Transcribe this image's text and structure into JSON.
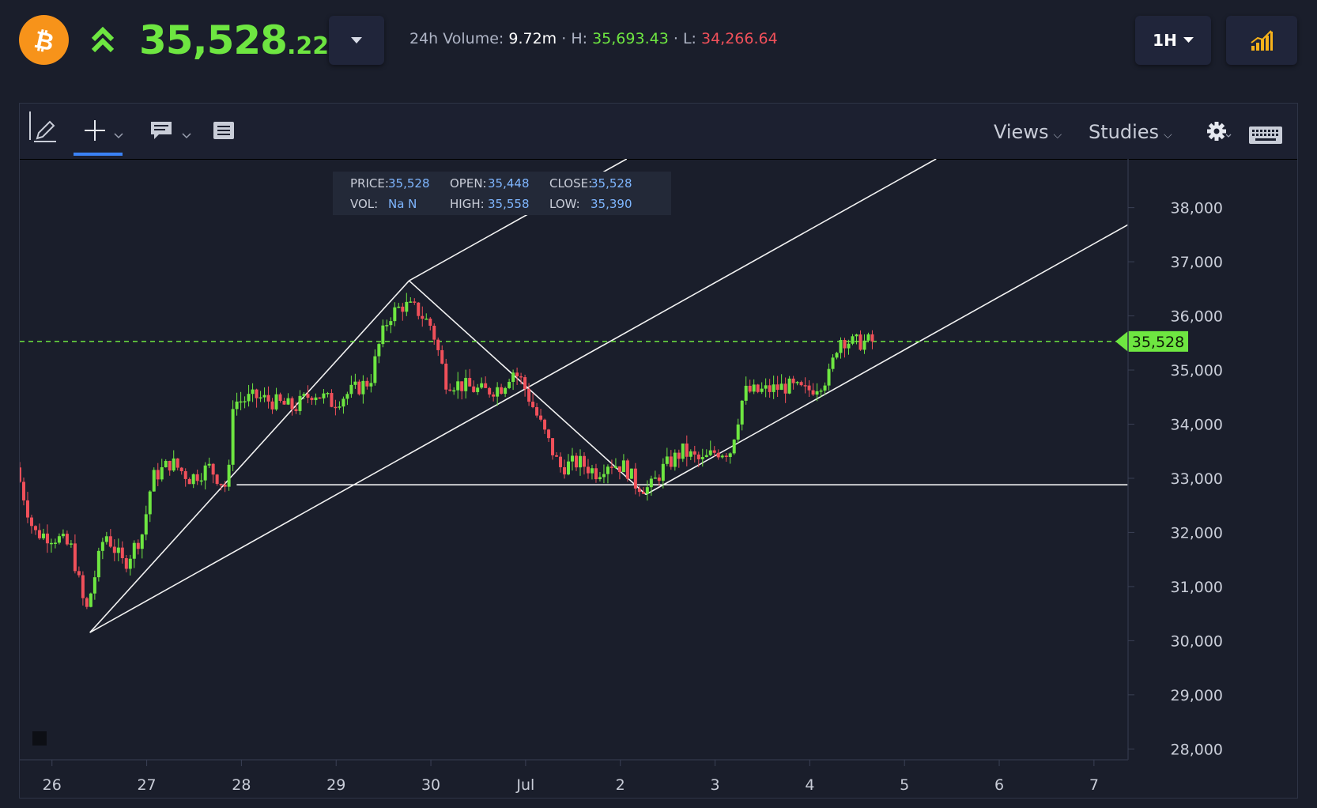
{
  "header": {
    "coin_icon": "bitcoin-icon",
    "trend_icon": "double-chevron-up-icon",
    "price_int": "35,528",
    "price_dec": ".22",
    "volume_label": "24h Volume:",
    "volume_value": "9.72m",
    "high_label": "H:",
    "high_value": "35,693.43",
    "low_label": "L:",
    "low_value": "34,266.64",
    "interval": "1H",
    "colors": {
      "up": "#6ee641",
      "down": "#f0505a",
      "brand": "#f7931a",
      "accent": "#3b82f6"
    }
  },
  "toolbar": {
    "icons": [
      "pencil-icon",
      "crosshair-icon",
      "comment-icon",
      "list-icon",
      "gear-icon",
      "keyboard-icon"
    ],
    "views_label": "Views",
    "studies_label": "Studies"
  },
  "ohlc": {
    "price_label": "PRICE:",
    "price": "35,528",
    "open_label": "OPEN:",
    "open": "35,448",
    "close_label": "CLOSE:",
    "close": "35,528",
    "vol_label": "VOL:",
    "vol": "Na N",
    "high_label": "HIGH:",
    "high": "35,558",
    "low_label": "LOW:",
    "low": "35,390"
  },
  "chart_data": {
    "type": "candlestick",
    "interval": "1H",
    "x_ticks": [
      {
        "label": "26",
        "day": 26
      },
      {
        "label": "27",
        "day": 27
      },
      {
        "label": "28",
        "day": 28
      },
      {
        "label": "29",
        "day": 29
      },
      {
        "label": "30",
        "day": 30
      },
      {
        "label": "Jul",
        "day": 31
      },
      {
        "label": "2",
        "day": 32
      },
      {
        "label": "3",
        "day": 33
      },
      {
        "label": "4",
        "day": 34
      },
      {
        "label": "5",
        "day": 35
      },
      {
        "label": "6",
        "day": 36
      },
      {
        "label": "7",
        "day": 37
      }
    ],
    "xlim": [
      25.66,
      37.36
    ],
    "ylim": [
      27800,
      38900
    ],
    "y_ticks": [
      28000,
      29000,
      30000,
      31000,
      32000,
      33000,
      34000,
      35000,
      36000,
      37000,
      38000
    ],
    "y_tick_labels": [
      "28,000",
      "29,000",
      "30,000",
      "31,000",
      "32,000",
      "33,000",
      "34,000",
      "35,000",
      "36,000",
      "37,000",
      "38,000"
    ],
    "current_price": 35528,
    "current_price_label": "35,528",
    "price_path": [
      [
        25.66,
        33200
      ],
      [
        25.85,
        32000
      ],
      [
        26.1,
        31900
      ],
      [
        26.25,
        31700
      ],
      [
        26.4,
        30500
      ],
      [
        26.6,
        32000
      ],
      [
        26.8,
        31400
      ],
      [
        27.0,
        32000
      ],
      [
        27.1,
        33000
      ],
      [
        27.3,
        33300
      ],
      [
        27.5,
        33000
      ],
      [
        27.7,
        33200
      ],
      [
        27.9,
        32800
      ],
      [
        27.95,
        34400
      ],
      [
        28.2,
        34500
      ],
      [
        28.4,
        34400
      ],
      [
        28.6,
        34300
      ],
      [
        28.8,
        34600
      ],
      [
        29.0,
        34400
      ],
      [
        29.2,
        34600
      ],
      [
        29.4,
        34800
      ],
      [
        29.5,
        35500
      ],
      [
        29.6,
        36000
      ],
      [
        29.75,
        36200
      ],
      [
        29.9,
        36100
      ],
      [
        30.05,
        35800
      ],
      [
        30.2,
        34800
      ],
      [
        30.4,
        34700
      ],
      [
        30.6,
        34600
      ],
      [
        30.8,
        34700
      ],
      [
        30.9,
        35000
      ],
      [
        31.0,
        34800
      ],
      [
        31.2,
        34000
      ],
      [
        31.4,
        33200
      ],
      [
        31.6,
        33300
      ],
      [
        31.8,
        33100
      ],
      [
        31.9,
        33300
      ],
      [
        32.1,
        33200
      ],
      [
        32.2,
        32900
      ],
      [
        32.35,
        32800
      ],
      [
        32.5,
        33200
      ],
      [
        32.7,
        33500
      ],
      [
        32.9,
        33300
      ],
      [
        33.05,
        33500
      ],
      [
        33.2,
        33500
      ],
      [
        33.35,
        34600
      ],
      [
        33.5,
        34600
      ],
      [
        33.8,
        34700
      ],
      [
        34.0,
        34600
      ],
      [
        34.1,
        34700
      ],
      [
        34.25,
        34900
      ],
      [
        34.35,
        35600
      ],
      [
        34.5,
        35500
      ],
      [
        34.68,
        35528
      ]
    ],
    "annotations": [
      {
        "type": "pitchfork",
        "points": [
          [
            26.4,
            30150
          ],
          [
            29.77,
            36650
          ],
          [
            32.27,
            32700
          ]
        ]
      },
      {
        "type": "horizontal_segment",
        "x": [
          27.95,
          37.36
        ],
        "y": 32880
      }
    ]
  }
}
